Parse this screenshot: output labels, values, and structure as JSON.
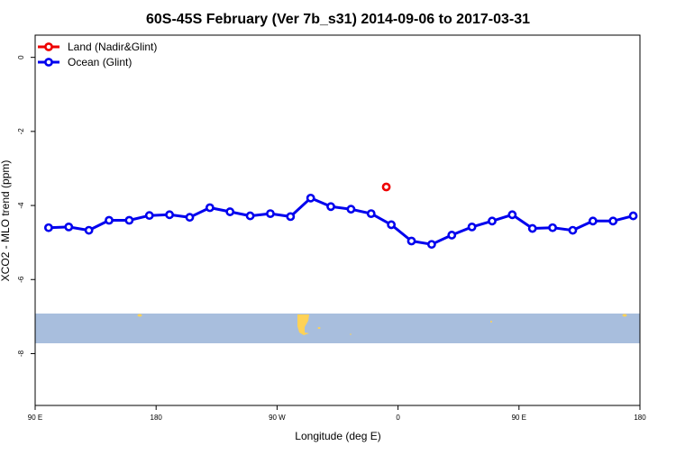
{
  "chart_data": {
    "type": "line",
    "title": "60S-45S February (Ver 7b_s31)   2014-09-06 to 2017-03-31",
    "xlabel": "Longitude (deg E)",
    "ylabel": "XCO2 - MLO trend (ppm)",
    "xlim": [
      90,
      450
    ],
    "ylim": [
      -9.4,
      0.6
    ],
    "x_ticks": [
      {
        "value": 90,
        "label": "90 E"
      },
      {
        "value": 180,
        "label": "180"
      },
      {
        "value": 270,
        "label": "90 W"
      },
      {
        "value": 360,
        "label": "0"
      },
      {
        "value": 450,
        "label": "90 E"
      },
      {
        "value": 540,
        "label": "180"
      }
    ],
    "y_ticks": [
      {
        "value": 0,
        "label": "0"
      },
      {
        "value": -2,
        "label": "-2"
      },
      {
        "value": -4,
        "label": "-4"
      },
      {
        "value": -6,
        "label": "-6"
      },
      {
        "value": -8,
        "label": "-8"
      }
    ],
    "legend_position": "top-left",
    "grid": false,
    "series": [
      {
        "name": "Land (Nadir&Glint)",
        "color": "#ee0000",
        "points": [
          [
            299,
            -3.5
          ]
        ]
      },
      {
        "name": "Ocean (Glint)",
        "color": "#0000ee",
        "points": [
          [
            98,
            -4.6
          ],
          [
            110,
            -4.58
          ],
          [
            122,
            -4.67
          ],
          [
            134,
            -4.4
          ],
          [
            146,
            -4.4
          ],
          [
            158,
            -4.27
          ],
          [
            170,
            -4.25
          ],
          [
            182,
            -4.32
          ],
          [
            194,
            -4.06
          ],
          [
            206,
            -4.17
          ],
          [
            218,
            -4.28
          ],
          [
            230,
            -4.22
          ],
          [
            242,
            -4.3
          ],
          [
            254,
            -3.8
          ],
          [
            266,
            -4.03
          ],
          [
            278,
            -4.1
          ],
          [
            290,
            -4.22
          ],
          [
            302,
            -4.52
          ],
          [
            314,
            -4.96
          ],
          [
            326,
            -5.05
          ],
          [
            338,
            -4.8
          ],
          [
            350,
            -4.58
          ],
          [
            362,
            -4.42
          ],
          [
            374,
            -4.25
          ],
          [
            386,
            -4.62
          ],
          [
            398,
            -4.6
          ],
          [
            410,
            -4.67
          ],
          [
            422,
            -4.42
          ],
          [
            434,
            -4.42
          ],
          [
            446,
            -4.28
          ]
        ]
      }
    ],
    "map_band": {
      "lat_range": [
        -60,
        -45
      ],
      "ocean_color": "#a8bedd",
      "land_color": "#ffd256"
    }
  }
}
